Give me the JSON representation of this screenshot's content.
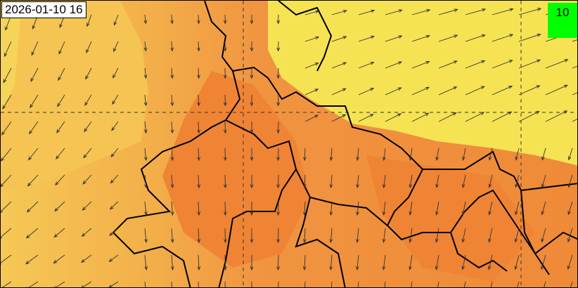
{
  "map": {
    "timestamp": "2026-01-10 16",
    "legend": {
      "reference_value": "10",
      "background_color": "#00ff00",
      "arrow_icon": "wind-reference-arrow"
    },
    "colors": {
      "yellow": "#f5e353",
      "light_orange": "#f5c452",
      "orange": "#f29a3e",
      "deep_orange": "#ef8434",
      "border": "#000000",
      "arrow": "#333333"
    }
  }
}
